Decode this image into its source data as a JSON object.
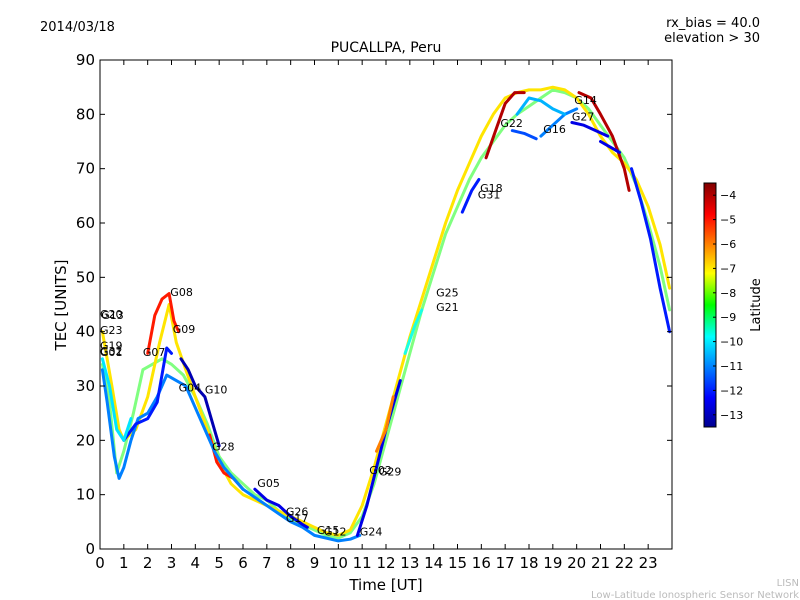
{
  "header": {
    "date": "2014/03/18",
    "title": "PUCALLPA, Peru",
    "rx_bias": "rx_bias = 40.0",
    "elevation": "elevation > 30"
  },
  "footer": {
    "credit_short": "LISN",
    "credit_long": "Low-Latitude Ionospheric Sensor Network"
  },
  "chart_data": {
    "type": "scatter",
    "title": "PUCALLPA, Peru",
    "xlabel": "Time [UT]",
    "ylabel": "TEC [UNITS]",
    "xlim": [
      0,
      24
    ],
    "ylim": [
      0,
      90
    ],
    "xticks": [
      "0",
      "1",
      "2",
      "3",
      "4",
      "5",
      "6",
      "7",
      "8",
      "9",
      "10",
      "11",
      "12",
      "13",
      "14",
      "15",
      "16",
      "17",
      "18",
      "19",
      "20",
      "21",
      "22",
      "23"
    ],
    "yticks": [
      "0",
      "10",
      "20",
      "30",
      "40",
      "50",
      "60",
      "70",
      "80",
      "90"
    ],
    "grid": false,
    "colorbar": {
      "label": "Latitude",
      "range": [
        -13.5,
        -3.5
      ],
      "ticks": [
        "-4",
        "-5",
        "-6",
        "-7",
        "-8",
        "-9",
        "-10",
        "-11",
        "-12",
        "-13"
      ],
      "colormap": "jet"
    },
    "satellite_labels": [
      {
        "name": "G20",
        "x": 0.0,
        "y": 42.5
      },
      {
        "name": "G13",
        "x": 0.05,
        "y": 42.3
      },
      {
        "name": "G23",
        "x": 0.0,
        "y": 39.6
      },
      {
        "name": "G19",
        "x": 0.0,
        "y": 36.7
      },
      {
        "name": "G32",
        "x": 0.0,
        "y": 35.7
      },
      {
        "name": "G01",
        "x": 0.0,
        "y": 35.5
      },
      {
        "name": "G08",
        "x": 2.95,
        "y": 46.6
      },
      {
        "name": "G09",
        "x": 3.05,
        "y": 39.8
      },
      {
        "name": "G07",
        "x": 1.8,
        "y": 35.5
      },
      {
        "name": "G04",
        "x": 3.3,
        "y": 29.0
      },
      {
        "name": "G10",
        "x": 4.4,
        "y": 28.6
      },
      {
        "name": "G28",
        "x": 4.7,
        "y": 18.1
      },
      {
        "name": "G05",
        "x": 6.6,
        "y": 11.4
      },
      {
        "name": "G26",
        "x": 7.8,
        "y": 6.2
      },
      {
        "name": "G17",
        "x": 7.8,
        "y": 5.0
      },
      {
        "name": "G15",
        "x": 9.1,
        "y": 2.8
      },
      {
        "name": "G12",
        "x": 9.4,
        "y": 2.5
      },
      {
        "name": "G24",
        "x": 10.9,
        "y": 2.5
      },
      {
        "name": "G02",
        "x": 11.3,
        "y": 13.8
      },
      {
        "name": "G29",
        "x": 11.7,
        "y": 13.5
      },
      {
        "name": "G25",
        "x": 14.1,
        "y": 46.5
      },
      {
        "name": "G21",
        "x": 14.1,
        "y": 43.8
      },
      {
        "name": "G18",
        "x": 15.95,
        "y": 65.7
      },
      {
        "name": "G31",
        "x": 15.85,
        "y": 64.5
      },
      {
        "name": "G22",
        "x": 16.8,
        "y": 77.7
      },
      {
        "name": "G16",
        "x": 18.6,
        "y": 76.6
      },
      {
        "name": "G27",
        "x": 19.8,
        "y": 78.9
      },
      {
        "name": "G14",
        "x": 19.9,
        "y": 81.9
      }
    ],
    "series": [
      {
        "lat": -8.5,
        "points": [
          [
            0.1,
            34
          ],
          [
            0.4,
            27
          ],
          [
            0.7,
            14
          ],
          [
            1.0,
            18
          ],
          [
            1.4,
            25
          ],
          [
            1.8,
            33
          ],
          [
            2.2,
            34
          ],
          [
            2.6,
            35
          ],
          [
            3.0,
            34
          ],
          [
            3.5,
            32
          ],
          [
            4.0,
            28
          ],
          [
            4.5,
            23
          ],
          [
            5.0,
            17
          ],
          [
            5.5,
            14
          ],
          [
            6.0,
            12
          ],
          [
            6.5,
            10
          ],
          [
            7.0,
            9
          ],
          [
            7.5,
            7
          ],
          [
            8.0,
            5.5
          ],
          [
            8.5,
            4.5
          ],
          [
            9.0,
            3.5
          ],
          [
            9.5,
            2.5
          ],
          [
            10.0,
            2
          ],
          [
            10.5,
            3
          ],
          [
            11.0,
            6
          ],
          [
            11.5,
            12
          ],
          [
            12.0,
            20
          ],
          [
            12.5,
            28
          ],
          [
            13.0,
            36
          ],
          [
            13.5,
            44
          ],
          [
            14.0,
            51
          ],
          [
            14.5,
            58
          ],
          [
            15.0,
            63
          ],
          [
            15.5,
            68
          ],
          [
            16.0,
            72
          ],
          [
            16.5,
            75
          ],
          [
            17.0,
            78
          ],
          [
            17.5,
            80
          ],
          [
            18.0,
            81.5
          ],
          [
            18.5,
            83
          ],
          [
            19.0,
            84.5
          ],
          [
            19.5,
            84
          ],
          [
            20.0,
            83
          ],
          [
            20.5,
            81
          ],
          [
            21.0,
            78
          ],
          [
            21.5,
            75
          ],
          [
            22.0,
            72
          ],
          [
            22.5,
            67
          ],
          [
            23.0,
            60
          ],
          [
            23.5,
            52
          ],
          [
            23.9,
            44
          ]
        ]
      },
      {
        "lat": -7.0,
        "points": [
          [
            0.1,
            40
          ],
          [
            0.5,
            30
          ],
          [
            0.8,
            22
          ],
          [
            1.0,
            20
          ],
          [
            1.5,
            22
          ],
          [
            2.0,
            28
          ],
          [
            2.5,
            38
          ],
          [
            2.9,
            45
          ],
          [
            3.2,
            38
          ],
          [
            3.6,
            33
          ],
          [
            4.0,
            28
          ],
          [
            4.5,
            22
          ],
          [
            5.0,
            16
          ],
          [
            5.5,
            12
          ],
          [
            6.0,
            10
          ],
          [
            6.5,
            9
          ],
          [
            7.0,
            8
          ],
          [
            7.5,
            7
          ],
          [
            8.0,
            6
          ],
          [
            8.5,
            5
          ],
          [
            9.0,
            4
          ],
          [
            9.5,
            3
          ],
          [
            10.0,
            2.5
          ],
          [
            10.5,
            3.5
          ],
          [
            11.0,
            8
          ],
          [
            11.5,
            15
          ],
          [
            12.0,
            23
          ],
          [
            12.5,
            31
          ],
          [
            13.0,
            39
          ],
          [
            13.5,
            46
          ],
          [
            14.0,
            53
          ],
          [
            14.5,
            60
          ],
          [
            15.0,
            66
          ],
          [
            15.5,
            71
          ],
          [
            16.0,
            76
          ],
          [
            16.5,
            80
          ],
          [
            17.0,
            83
          ],
          [
            17.5,
            84
          ],
          [
            18.0,
            84.5
          ],
          [
            18.5,
            84.5
          ],
          [
            19.0,
            85
          ],
          [
            19.5,
            84.5
          ],
          [
            20.0,
            83
          ],
          [
            20.5,
            80
          ],
          [
            21.0,
            76
          ],
          [
            21.5,
            73
          ],
          [
            22.0,
            71
          ],
          [
            22.5,
            68
          ],
          [
            23.0,
            63
          ],
          [
            23.5,
            56
          ],
          [
            23.9,
            48
          ]
        ]
      },
      {
        "lat": -5.0,
        "points": [
          [
            2.0,
            36
          ],
          [
            2.3,
            43
          ],
          [
            2.6,
            46
          ],
          [
            2.9,
            47
          ],
          [
            3.1,
            42
          ],
          [
            3.3,
            40
          ]
        ]
      },
      {
        "lat": -5.0,
        "points": [
          [
            4.6,
            21
          ],
          [
            4.9,
            16
          ],
          [
            5.2,
            14
          ],
          [
            5.6,
            13
          ],
          [
            6.0,
            11
          ]
        ]
      },
      {
        "lat": -4.0,
        "points": [
          [
            16.2,
            72
          ],
          [
            16.6,
            77
          ],
          [
            17.0,
            82
          ],
          [
            17.4,
            84
          ],
          [
            17.8,
            84
          ]
        ]
      },
      {
        "lat": -4.0,
        "points": [
          [
            20.1,
            84
          ],
          [
            20.6,
            83
          ],
          [
            21.0,
            80
          ],
          [
            21.5,
            76
          ],
          [
            22.0,
            70
          ],
          [
            22.2,
            66
          ]
        ]
      },
      {
        "lat": -11.0,
        "points": [
          [
            0.1,
            33
          ],
          [
            0.3,
            27
          ],
          [
            0.6,
            17
          ],
          [
            0.8,
            13
          ],
          [
            1.0,
            15
          ],
          [
            1.3,
            20
          ],
          [
            1.6,
            24
          ],
          [
            2.0,
            25
          ],
          [
            2.4,
            28
          ],
          [
            2.8,
            32
          ],
          [
            3.2,
            31
          ],
          [
            3.6,
            30
          ],
          [
            4.0,
            26
          ],
          [
            4.4,
            22
          ],
          [
            4.8,
            18
          ],
          [
            5.2,
            15
          ],
          [
            5.6,
            13
          ],
          [
            6.0,
            11
          ],
          [
            6.5,
            9.5
          ],
          [
            7.0,
            8
          ],
          [
            7.5,
            6.5
          ],
          [
            8.0,
            5
          ],
          [
            8.5,
            4
          ],
          [
            9.0,
            2.5
          ],
          [
            9.5,
            2
          ],
          [
            10.0,
            1.5
          ],
          [
            10.5,
            1.8
          ],
          [
            10.9,
            2.5
          ]
        ]
      },
      {
        "lat": -12.0,
        "points": [
          [
            1.0,
            20
          ],
          [
            1.5,
            23
          ],
          [
            2.0,
            24
          ],
          [
            2.4,
            27
          ],
          [
            2.8,
            37
          ],
          [
            3.0,
            36
          ]
        ]
      },
      {
        "lat": -13.0,
        "points": [
          [
            3.4,
            35
          ],
          [
            3.7,
            33
          ],
          [
            4.0,
            30
          ],
          [
            4.4,
            28
          ],
          [
            4.8,
            22
          ],
          [
            5.0,
            19
          ]
        ]
      },
      {
        "lat": -12.5,
        "points": [
          [
            6.5,
            11
          ],
          [
            7.0,
            9
          ],
          [
            7.5,
            8
          ],
          [
            8.0,
            6
          ],
          [
            8.5,
            4.5
          ],
          [
            8.7,
            4
          ]
        ]
      },
      {
        "lat": -12.5,
        "points": [
          [
            10.8,
            2.5
          ],
          [
            11.2,
            8
          ],
          [
            11.6,
            15
          ],
          [
            12.0,
            22
          ],
          [
            12.4,
            28
          ],
          [
            12.6,
            31
          ]
        ]
      },
      {
        "lat": -12.0,
        "points": [
          [
            15.2,
            62
          ],
          [
            15.6,
            66
          ],
          [
            15.9,
            68
          ]
        ]
      },
      {
        "lat": -11.5,
        "points": [
          [
            17.3,
            77
          ],
          [
            17.8,
            76.5
          ],
          [
            18.3,
            75.5
          ]
        ]
      },
      {
        "lat": -11.0,
        "points": [
          [
            18.5,
            76
          ],
          [
            19.0,
            78
          ],
          [
            19.5,
            80
          ],
          [
            20.0,
            81
          ]
        ]
      },
      {
        "lat": -12.5,
        "points": [
          [
            19.8,
            78.5
          ],
          [
            20.3,
            78
          ],
          [
            20.8,
            77
          ],
          [
            21.3,
            76
          ]
        ]
      },
      {
        "lat": -12.5,
        "points": [
          [
            21.0,
            75
          ],
          [
            21.4,
            74
          ],
          [
            21.8,
            73
          ]
        ]
      },
      {
        "lat": -12.0,
        "points": [
          [
            22.3,
            70
          ],
          [
            22.7,
            64
          ],
          [
            23.1,
            57
          ],
          [
            23.5,
            48
          ],
          [
            23.9,
            40
          ]
        ]
      },
      {
        "lat": -10.0,
        "points": [
          [
            0.1,
            35
          ],
          [
            0.4,
            30
          ],
          [
            0.7,
            22
          ],
          [
            1.0,
            20
          ],
          [
            1.3,
            24
          ]
        ]
      },
      {
        "lat": -9.5,
        "points": [
          [
            12.8,
            36
          ],
          [
            13.2,
            41
          ],
          [
            13.5,
            44
          ]
        ]
      },
      {
        "lat": -6.0,
        "points": [
          [
            11.6,
            18
          ],
          [
            12.0,
            22
          ],
          [
            12.3,
            28
          ]
        ]
      },
      {
        "lat": -10.5,
        "points": [
          [
            17.5,
            80
          ],
          [
            18.0,
            83
          ],
          [
            18.5,
            82.5
          ],
          [
            19.0,
            81
          ],
          [
            19.5,
            80
          ]
        ]
      }
    ]
  }
}
